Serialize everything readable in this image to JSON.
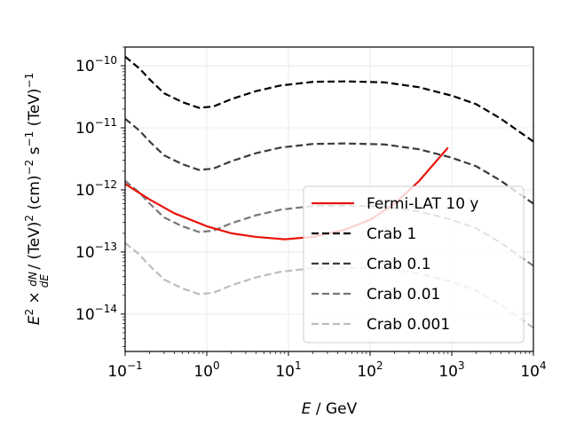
{
  "chart_data": {
    "type": "line",
    "title": "",
    "xlabel": "E / GeV",
    "xlabel_var": "E",
    "xlabel_unit": " / GeV",
    "ylabel": "E^2 × dN/dE / (TeV)^2 (cm)^-2 s^-1 (TeV)^-1",
    "x_scale": "log",
    "y_scale": "log",
    "xlim": [
      0.1,
      10000
    ],
    "ylim": [
      2.5e-15,
      2e-10
    ],
    "grid": true,
    "legend_position": "bottom-right",
    "x_ticks": [
      {
        "value": 0.1,
        "base": "10",
        "exp": "−1"
      },
      {
        "value": 1,
        "base": "10",
        "exp": "0"
      },
      {
        "value": 10,
        "base": "10",
        "exp": "1"
      },
      {
        "value": 100,
        "base": "10",
        "exp": "2"
      },
      {
        "value": 1000,
        "base": "10",
        "exp": "3"
      },
      {
        "value": 10000,
        "base": "10",
        "exp": "4"
      }
    ],
    "y_ticks": [
      {
        "value": 1e-14,
        "base": "10",
        "exp": "−14"
      },
      {
        "value": 1e-13,
        "base": "10",
        "exp": "−13"
      },
      {
        "value": 1e-12,
        "base": "10",
        "exp": "−12"
      },
      {
        "value": 1e-11,
        "base": "10",
        "exp": "−11"
      },
      {
        "value": 1e-10,
        "base": "10",
        "exp": "−10"
      }
    ],
    "crab_shape": {
      "x": [
        0.1,
        0.15,
        0.2,
        0.3,
        0.5,
        0.8,
        1.2,
        2,
        4,
        8,
        20,
        50,
        150,
        400,
        1000,
        2000,
        4000,
        10000
      ],
      "y": [
        1.4e-10,
        9e-11,
        6e-11,
        3.6e-11,
        2.6e-11,
        2.1e-11,
        2.2e-11,
        2.9e-11,
        3.9e-11,
        4.8e-11,
        5.5e-11,
        5.6e-11,
        5.4e-11,
        4.5e-11,
        3.3e-11,
        2.4e-11,
        1.4e-11,
        6e-12
      ]
    },
    "series": [
      {
        "name": "Fermi-LAT 10 y",
        "color": "#e8140c",
        "style": "solid",
        "x": [
          0.1,
          0.2,
          0.4,
          1,
          2,
          4,
          9,
          20,
          50,
          100,
          200,
          400,
          900
        ],
        "y": [
          1.25e-12,
          7e-13,
          4.2e-13,
          2.6e-13,
          2e-13,
          1.75e-13,
          1.6e-13,
          1.75e-13,
          2.3e-13,
          3.3e-13,
          6e-13,
          1.4e-12,
          4.8e-12
        ]
      },
      {
        "name": "Crab 1",
        "color": "#000000",
        "style": "dashed",
        "scale": 1
      },
      {
        "name": "Crab 0.1",
        "color": "#3c3c3c",
        "style": "dashed",
        "scale": 0.1
      },
      {
        "name": "Crab 0.01",
        "color": "#787878",
        "style": "dashed",
        "scale": 0.01
      },
      {
        "name": "Crab 0.001",
        "color": "#bdbdbd",
        "style": "dashed",
        "scale": 0.001
      }
    ]
  }
}
